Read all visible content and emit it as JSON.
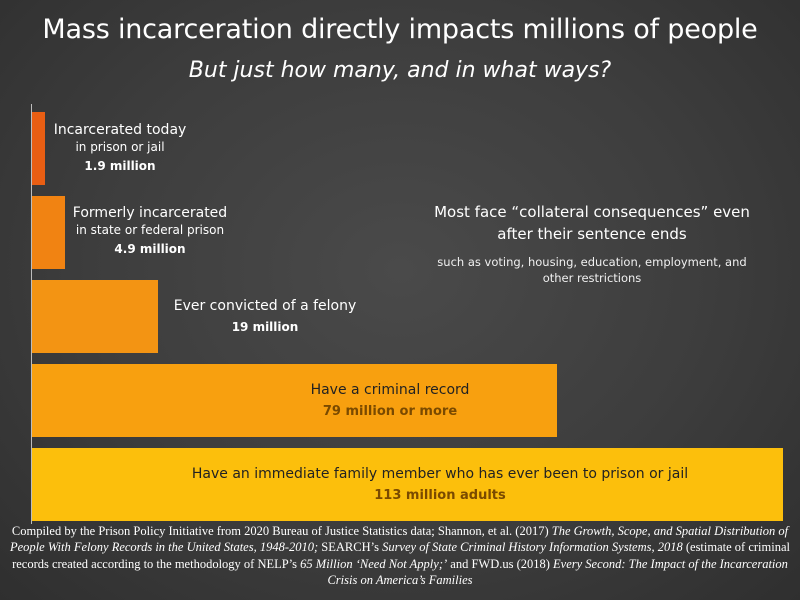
{
  "chart_data": {
    "type": "bar",
    "orientation": "horizontal",
    "title": "Mass incarceration directly impacts millions of people",
    "subtitle": "But just how many, and in what ways?",
    "xlim": [
      0,
      140
    ],
    "categories": [
      "Incarcerated today",
      "Formerly incarcerated",
      "Ever convicted of a felony",
      "Have a criminal record",
      "Have an immediate family member who has ever been to prison or jail"
    ],
    "values": [
      1.9,
      4.9,
      19,
      79,
      113
    ],
    "bars": [
      {
        "label": "Incarcerated today",
        "sublabel": "in prison or jail",
        "value": 1.9,
        "value_label": "1.9 million",
        "color": "#e95e13"
      },
      {
        "label": "Formerly incarcerated",
        "sublabel": "in state or federal prison",
        "value": 4.9,
        "value_label": "4.9 million",
        "color": "#f18312"
      },
      {
        "label": "Ever convicted of a felony",
        "sublabel": "",
        "value": 19,
        "value_label": "19 million",
        "color": "#f39413"
      },
      {
        "label": "Have a criminal record",
        "sublabel": "",
        "value": 79,
        "value_label": "79 million or more",
        "color": "#f8a00f"
      },
      {
        "label": "Have an immediate family member who has ever been to prison or jail",
        "sublabel": "",
        "value": 113,
        "value_label": "113 million adults",
        "color": "#fcbf0c"
      }
    ],
    "annotation": {
      "main": "Most face “collateral consequences” even after their sentence ends",
      "sub": "such as voting, housing, education, employment, and other restrictions"
    }
  },
  "source": {
    "p1": "Compiled by the Prison Policy Initiative from 2020 Bureau of Justice Statistics data; Shannon, et al.  (2017) ",
    "i1": "The Growth, Scope, and Spatial Distribution of People With Felony Records in the United States, 1948-2010;",
    "p2": " SEARCH’s ",
    "i2": "Survey of State Criminal History Information Systems, 2018",
    "p3": " (estimate of criminal records created according to the methodology of NELP’s ",
    "i3": "65 Million ‘Need Not Apply;’",
    "p4": " and FWD.us (2018) ",
    "i4": "Every Second: The Impact of the Incarceration Crisis on America’s Families"
  }
}
